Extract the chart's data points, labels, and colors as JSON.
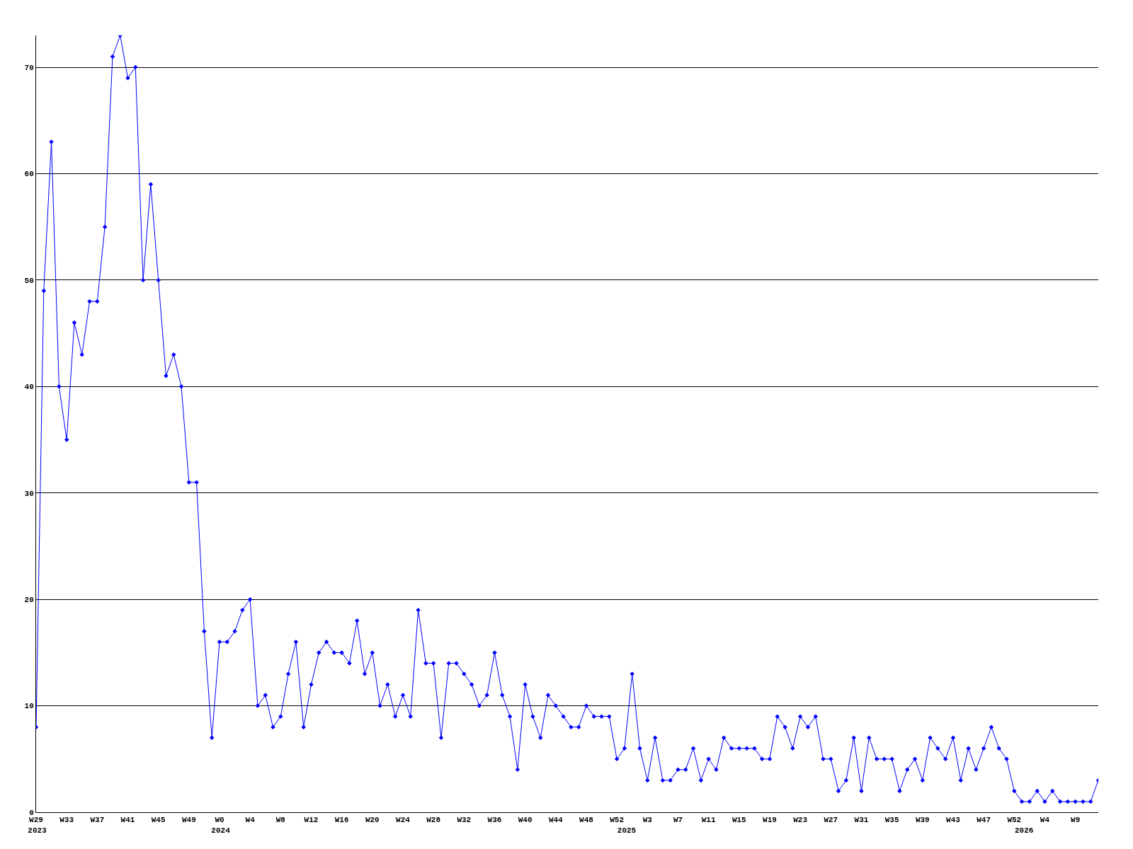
{
  "chart_data": {
    "type": "line",
    "x": [
      "2023-07-16",
      "2023-07-23",
      "2023-07-30",
      "2023-08-06",
      "2023-08-13",
      "2023-08-20",
      "2023-08-27",
      "2023-09-03",
      "2023-09-10",
      "2023-09-17",
      "2023-09-24",
      "2023-10-01",
      "2023-10-08",
      "2023-10-15",
      "2023-10-22",
      "2023-10-29",
      "2023-11-05",
      "2023-11-12",
      "2023-11-19",
      "2023-11-26",
      "2023-12-03",
      "2023-12-10",
      "2023-12-17",
      "2023-12-24",
      "2023-12-31",
      "2024-01-07",
      "2024-01-14",
      "2024-01-21",
      "2024-01-28",
      "2024-02-04",
      "2024-02-11",
      "2024-02-18",
      "2024-02-25",
      "2024-03-03",
      "2024-03-10",
      "2024-03-17",
      "2024-03-24",
      "2024-03-31",
      "2024-04-07",
      "2024-04-14",
      "2024-04-21",
      "2024-04-28",
      "2024-05-05",
      "2024-05-12",
      "2024-05-19",
      "2024-05-26",
      "2024-06-02",
      "2024-06-09",
      "2024-06-16",
      "2024-06-23",
      "2024-06-30",
      "2024-07-07",
      "2024-07-14",
      "2024-07-21",
      "2024-07-28",
      "2024-08-04",
      "2024-08-11",
      "2024-08-18",
      "2024-08-25",
      "2024-09-01",
      "2024-09-08",
      "2024-09-15",
      "2024-09-22",
      "2024-09-29",
      "2024-10-06",
      "2024-10-13",
      "2024-10-20",
      "2024-10-27",
      "2024-11-03",
      "2024-11-10",
      "2024-11-17",
      "2024-11-24",
      "2024-12-01",
      "2024-12-08",
      "2024-12-15",
      "2024-12-22",
      "2024-12-29",
      "2025-01-05",
      "2025-01-12",
      "2025-01-19",
      "2025-01-26",
      "2025-02-02",
      "2025-02-09",
      "2025-02-16",
      "2025-02-23",
      "2025-03-02",
      "2025-03-09",
      "2025-03-16",
      "2025-03-23",
      "2025-03-30",
      "2025-04-06",
      "2025-04-13",
      "2025-04-20",
      "2025-04-27",
      "2025-05-04",
      "2025-05-11",
      "2025-05-18",
      "2025-05-25",
      "2025-06-01",
      "2025-06-08",
      "2025-06-15",
      "2025-06-22",
      "2025-06-29",
      "2025-07-06",
      "2025-07-13",
      "2025-07-20",
      "2025-07-27",
      "2025-08-03",
      "2025-08-10",
      "2025-08-17",
      "2025-08-24",
      "2025-08-31",
      "2025-09-07",
      "2025-09-14",
      "2025-09-21",
      "2025-09-28",
      "2025-10-05",
      "2025-10-12",
      "2025-10-19",
      "2025-10-26",
      "2025-11-02",
      "2025-11-09",
      "2025-11-16",
      "2025-11-23",
      "2025-11-30",
      "2025-12-07",
      "2025-12-14",
      "2025-12-21",
      "2025-12-28",
      "2026-01-04",
      "2026-01-11",
      "2026-01-18",
      "2026-01-25",
      "2026-02-01",
      "2026-02-08",
      "2026-02-15",
      "2026-02-22",
      "2026-03-01",
      "2026-03-08",
      "2026-03-15"
    ],
    "series": [
      {
        "color": "#0000ff",
        "values": [
          8,
          49,
          63,
          40,
          35,
          46,
          43,
          48,
          48,
          55,
          71,
          73,
          69,
          70,
          50,
          59,
          50,
          41,
          43,
          40,
          31,
          31,
          17,
          7,
          16,
          16,
          17,
          19,
          20,
          10,
          11,
          8,
          9,
          13,
          16,
          8,
          12,
          15,
          16,
          15,
          15,
          14,
          18,
          13,
          15,
          10,
          12,
          9,
          11,
          9,
          19,
          14,
          14,
          7,
          14,
          14,
          13,
          12,
          10,
          11,
          15,
          11,
          9,
          4,
          12,
          9,
          7,
          11,
          10,
          9,
          8,
          8,
          10,
          9,
          9,
          9,
          5,
          6,
          13,
          6,
          3,
          7,
          3,
          3,
          4,
          4,
          6,
          3,
          5,
          4,
          7,
          6,
          6,
          6,
          6,
          5,
          5,
          9,
          8,
          6,
          9,
          8,
          9,
          5,
          5,
          2,
          3,
          7,
          2,
          7,
          5,
          5,
          5,
          2,
          4,
          5,
          3,
          7,
          6,
          5,
          7,
          3,
          6,
          4,
          6,
          8,
          6,
          5,
          2,
          1,
          1,
          2,
          1,
          2,
          1,
          1,
          1,
          1,
          1,
          3
        ]
      }
    ],
    "xlim": [
      "2023-07-16",
      "2026-03-15"
    ],
    "xticks": [
      {
        "value": "2023-07-16",
        "label": "W29"
      },
      {
        "value": "2023-08-13",
        "label": "W33"
      },
      {
        "value": "2023-09-10",
        "label": "W37"
      },
      {
        "value": "2023-10-08",
        "label": "W41"
      },
      {
        "value": "2023-11-05",
        "label": "W45"
      },
      {
        "value": "2023-12-03",
        "label": "W49"
      },
      {
        "value": "2023-12-31",
        "label": "W0"
      },
      {
        "value": "2024-01-28",
        "label": "W4"
      },
      {
        "value": "2024-02-25",
        "label": "W8"
      },
      {
        "value": "2024-03-24",
        "label": "W12"
      },
      {
        "value": "2024-04-21",
        "label": "W16"
      },
      {
        "value": "2024-05-19",
        "label": "W20"
      },
      {
        "value": "2024-06-16",
        "label": "W24"
      },
      {
        "value": "2024-07-14",
        "label": "W28"
      },
      {
        "value": "2024-08-11",
        "label": "W32"
      },
      {
        "value": "2024-09-08",
        "label": "W36"
      },
      {
        "value": "2024-10-06",
        "label": "W40"
      },
      {
        "value": "2024-11-03",
        "label": "W44"
      },
      {
        "value": "2024-12-01",
        "label": "W48"
      },
      {
        "value": "2024-12-29",
        "label": "W52"
      },
      {
        "value": "2025-01-26",
        "label": "W3"
      },
      {
        "value": "2025-02-23",
        "label": "W7"
      },
      {
        "value": "2025-03-23",
        "label": "W11"
      },
      {
        "value": "2025-04-20",
        "label": "W15"
      },
      {
        "value": "2025-05-18",
        "label": "W19"
      },
      {
        "value": "2025-06-15",
        "label": "W23"
      },
      {
        "value": "2025-07-13",
        "label": "W27"
      },
      {
        "value": "2025-08-10",
        "label": "W31"
      },
      {
        "value": "2025-09-07",
        "label": "W35"
      },
      {
        "value": "2025-10-05",
        "label": "W39"
      },
      {
        "value": "2025-11-02",
        "label": "W43"
      },
      {
        "value": "2025-11-30",
        "label": "W47"
      },
      {
        "value": "2025-12-28",
        "label": "W52"
      },
      {
        "value": "2026-01-25",
        "label": "W4"
      },
      {
        "value": "2026-02-22",
        "label": "W9"
      }
    ],
    "x2lim": [
      "2023-07-16",
      "2026-03-15"
    ],
    "x2ticks": [
      {
        "value": "2023-07-17",
        "label": "2023"
      },
      {
        "value": "2024-01-01",
        "label": "2024"
      },
      {
        "value": "2025-01-07",
        "label": "2025"
      },
      {
        "value": "2026-01-06",
        "label": "2026"
      }
    ],
    "ylim": [
      0,
      73
    ],
    "yticks": [
      0,
      10,
      20,
      30,
      40,
      50,
      60,
      70
    ],
    "grid": "y",
    "marker": "diamond",
    "line_style": "solid"
  }
}
